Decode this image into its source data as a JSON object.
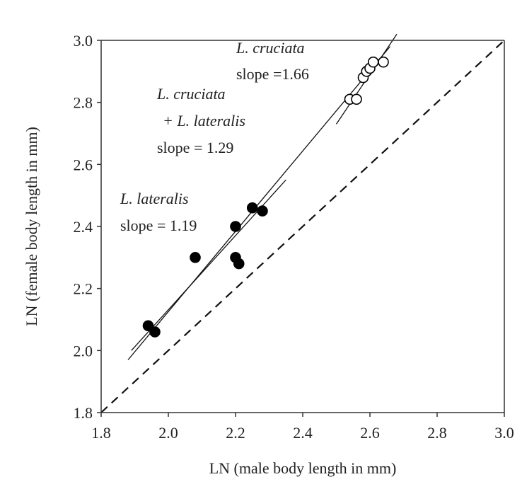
{
  "chart_data": {
    "type": "scatter",
    "xlabel": "LN (male body length in mm)",
    "ylabel": "LN (female body length in mm)",
    "xlim": [
      1.8,
      3.0
    ],
    "ylim": [
      1.8,
      3.0
    ],
    "x_ticks": [
      "1.8",
      "2.0",
      "2.2",
      "2.4",
      "2.6",
      "2.8",
      "3.0"
    ],
    "y_ticks": [
      "1.8",
      "2.0",
      "2.2",
      "2.4",
      "2.6",
      "2.8",
      "3.0"
    ],
    "grid": false,
    "series": [
      {
        "name": "L. lateralis",
        "marker": "filled-circle",
        "color": "#000000",
        "points": [
          {
            "x": 1.94,
            "y": 2.08
          },
          {
            "x": 1.96,
            "y": 2.06
          },
          {
            "x": 2.08,
            "y": 2.3
          },
          {
            "x": 2.2,
            "y": 2.4
          },
          {
            "x": 2.2,
            "y": 2.3
          },
          {
            "x": 2.21,
            "y": 2.28
          },
          {
            "x": 2.25,
            "y": 2.46
          },
          {
            "x": 2.28,
            "y": 2.45
          }
        ]
      },
      {
        "name": "L. cruciata",
        "marker": "open-circle",
        "color": "#000000",
        "points": [
          {
            "x": 2.54,
            "y": 2.81
          },
          {
            "x": 2.56,
            "y": 2.81
          },
          {
            "x": 2.58,
            "y": 2.88
          },
          {
            "x": 2.59,
            "y": 2.9
          },
          {
            "x": 2.6,
            "y": 2.91
          },
          {
            "x": 2.61,
            "y": 2.93
          },
          {
            "x": 2.64,
            "y": 2.93
          }
        ]
      }
    ],
    "regression_lines": [
      {
        "label": "L. lateralis slope",
        "x1": 1.89,
        "y1": 2.0,
        "x2": 2.35,
        "y2": 2.55
      },
      {
        "label": "L. cruciata + L. lateralis slope",
        "x1": 1.88,
        "y1": 1.97,
        "x2": 2.66,
        "y2": 2.98
      },
      {
        "label": "L. cruciata slope",
        "x1": 2.5,
        "y1": 2.73,
        "x2": 2.68,
        "y2": 3.02
      }
    ],
    "reference_line": {
      "style": "dashed",
      "x1": 1.8,
      "y1": 1.8,
      "x2": 3.0,
      "y2": 3.0
    },
    "annotations": [
      {
        "id": "cruciata",
        "species": "L. cruciata",
        "text": "slope =1.66",
        "data_x": 2.3,
        "data_y": 2.95
      },
      {
        "id": "combined",
        "species": "L. cruciata",
        "species2": "+ L. lateralis",
        "text": "slope = 1.29",
        "data_x": 2.0,
        "data_y": 2.78
      },
      {
        "id": "lateralis",
        "species": "L. lateralis",
        "text": "slope = 1.19",
        "data_x": 1.86,
        "data_y": 2.45
      }
    ]
  }
}
